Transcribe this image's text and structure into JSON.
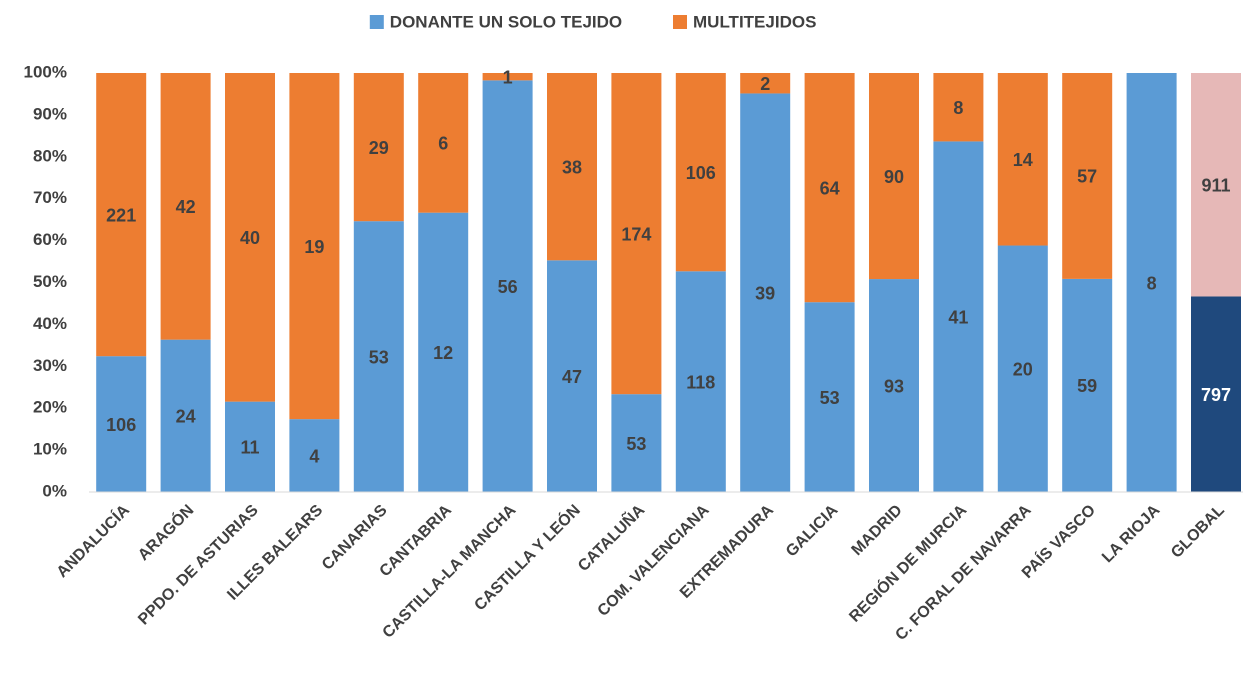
{
  "chart_data": {
    "type": "stacked_percent_bar",
    "categories": [
      "ANDALUCÍA",
      "ARAGÓN",
      "PPDO. DE ASTURIAS",
      "ILLES BALEARS",
      "CANARIAS",
      "CANTABRIA",
      "CASTILLA-LA MANCHA",
      "CASTILLA Y LEÓN",
      "CATALUÑA",
      "COM. VALENCIANA",
      "EXTREMADURA",
      "GALICIA",
      "MADRID",
      "REGIÓN DE MURCIA",
      "C. FORAL DE NAVARRA",
      "PAÍS VASCO",
      "LA RIOJA",
      "GLOBAL"
    ],
    "series": [
      {
        "name": "DONANTE UN SOLO TEJIDO",
        "color": "#5b9bd5",
        "colors": [
          "#5b9bd5",
          "#5b9bd5",
          "#5b9bd5",
          "#5b9bd5",
          "#5b9bd5",
          "#5b9bd5",
          "#5b9bd5",
          "#5b9bd5",
          "#5b9bd5",
          "#5b9bd5",
          "#5b9bd5",
          "#5b9bd5",
          "#5b9bd5",
          "#5b9bd5",
          "#5b9bd5",
          "#5b9bd5",
          "#5b9bd5",
          "#1f497d"
        ],
        "values": [
          106,
          24,
          11,
          4,
          53,
          12,
          56,
          47,
          53,
          118,
          39,
          53,
          93,
          41,
          20,
          59,
          8,
          797
        ]
      },
      {
        "name": "MULTITEJIDOS",
        "color": "#ed7d31",
        "colors": [
          "#ed7d31",
          "#ed7d31",
          "#ed7d31",
          "#ed7d31",
          "#ed7d31",
          "#ed7d31",
          "#ed7d31",
          "#ed7d31",
          "#ed7d31",
          "#ed7d31",
          "#ed7d31",
          "#ed7d31",
          "#ed7d31",
          "#ed7d31",
          "#ed7d31",
          "#ed7d31",
          "#ed7d31",
          "#e6b8b7"
        ],
        "values": [
          221,
          42,
          40,
          19,
          29,
          6,
          1,
          38,
          174,
          106,
          2,
          64,
          90,
          8,
          14,
          57,
          null,
          911
        ]
      }
    ],
    "ylim": [
      0,
      100
    ],
    "yticks": [
      {
        "value": 0,
        "label": "0%"
      },
      {
        "value": 10,
        "label": "10%"
      },
      {
        "value": 20,
        "label": "20%"
      },
      {
        "value": 30,
        "label": "30%"
      },
      {
        "value": 40,
        "label": "40%"
      },
      {
        "value": 50,
        "label": "50%"
      },
      {
        "value": 60,
        "label": "60%"
      },
      {
        "value": 70,
        "label": "70%"
      },
      {
        "value": 80,
        "label": "80%"
      },
      {
        "value": 90,
        "label": "90%"
      },
      {
        "value": 100,
        "label": "100%"
      }
    ],
    "legend": "top",
    "grid": false
  }
}
